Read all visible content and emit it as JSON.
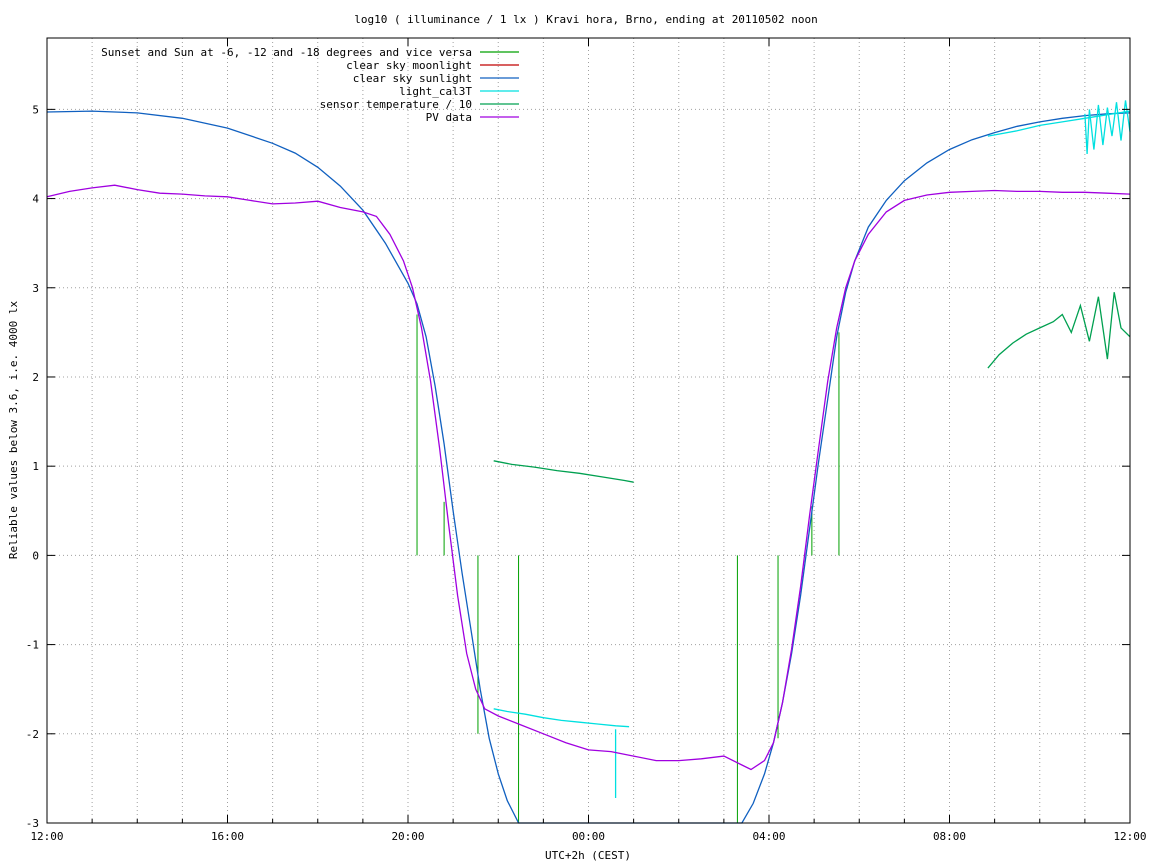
{
  "chart_data": {
    "type": "line",
    "title": "log10 ( illuminance / 1 lx ) Kravi hora, Brno, ending at 20110502 noon",
    "xlabel": "UTC+2h (CEST)",
    "ylabel": "Reliable values below 3.6, i.e. 4000 lx",
    "x_unit": "hours since 12:00 (time of day)",
    "xlim": [
      0,
      24
    ],
    "ylim": [
      -3,
      5.8
    ],
    "x_ticks": [
      {
        "v": 0,
        "label": "12:00"
      },
      {
        "v": 4,
        "label": "16:00"
      },
      {
        "v": 8,
        "label": "20:00"
      },
      {
        "v": 12,
        "label": "00:00"
      },
      {
        "v": 16,
        "label": "04:00"
      },
      {
        "v": 20,
        "label": "08:00"
      },
      {
        "v": 24,
        "label": "12:00"
      }
    ],
    "x_minor_grid": [
      1,
      2,
      3,
      5,
      6,
      7,
      9,
      10,
      11,
      13,
      14,
      15,
      17,
      18,
      19,
      21,
      22,
      23
    ],
    "y_ticks": [
      {
        "v": 5,
        "label": "5"
      },
      {
        "v": 4,
        "label": "4"
      },
      {
        "v": 3,
        "label": "3"
      },
      {
        "v": 2,
        "label": "2"
      },
      {
        "v": 1,
        "label": "1"
      },
      {
        "v": 0,
        "label": "0"
      },
      {
        "v": -1,
        "label": "-1"
      },
      {
        "v": -2,
        "label": "-2"
      },
      {
        "v": -3,
        "label": "-3"
      }
    ],
    "grid": true,
    "legend_position": "top-left",
    "legend": [
      {
        "label": "Sunset and Sun at -6, -12 and -18 degrees and vice versa",
        "color": "#00a000"
      },
      {
        "label": "clear sky moonlight",
        "color": "#c00000"
      },
      {
        "label": "clear sky sunlight",
        "color": "#1060c0"
      },
      {
        "label": "light_cal3T",
        "color": "#00e0e0"
      },
      {
        "label": "sensor temperature / 10",
        "color": "#00a050"
      },
      {
        "label": "PV data",
        "color": "#a000e0"
      }
    ],
    "series": [
      {
        "name": "Sunset and Sun at -6, -12 and -18 degrees and vice versa",
        "type": "impulses",
        "color": "#00a000",
        "impulses": [
          {
            "x": 8.2,
            "y0": 0,
            "y1": 2.7
          },
          {
            "x": 8.8,
            "y0": 0,
            "y1": 0.6
          },
          {
            "x": 9.55,
            "y0": 0,
            "y1": -2.0
          },
          {
            "x": 10.45,
            "y0": 0,
            "y1": -3.0
          },
          {
            "x": 15.3,
            "y0": 0,
            "y1": -3.0
          },
          {
            "x": 16.2,
            "y0": 0,
            "y1": -2.05
          },
          {
            "x": 16.95,
            "y0": 0,
            "y1": 0.55
          },
          {
            "x": 17.55,
            "y0": 0,
            "y1": 2.5
          }
        ]
      },
      {
        "name": "clear sky sunlight",
        "type": "line",
        "color": "#1060c0",
        "points": [
          [
            0,
            4.97
          ],
          [
            1,
            4.98
          ],
          [
            2,
            4.96
          ],
          [
            3,
            4.9
          ],
          [
            4,
            4.79
          ],
          [
            5,
            4.62
          ],
          [
            5.5,
            4.51
          ],
          [
            6,
            4.35
          ],
          [
            6.5,
            4.14
          ],
          [
            7,
            3.87
          ],
          [
            7.5,
            3.5
          ],
          [
            8,
            3.05
          ],
          [
            8.2,
            2.82
          ],
          [
            8.4,
            2.45
          ],
          [
            8.6,
            1.9
          ],
          [
            8.8,
            1.25
          ],
          [
            9.0,
            0.5
          ],
          [
            9.2,
            -0.2
          ],
          [
            9.4,
            -0.85
          ],
          [
            9.6,
            -1.5
          ],
          [
            9.8,
            -2.05
          ],
          [
            10.0,
            -2.45
          ],
          [
            10.2,
            -2.75
          ],
          [
            10.45,
            -3.0
          ],
          [
            15.4,
            -3.0
          ],
          [
            15.65,
            -2.78
          ],
          [
            15.9,
            -2.45
          ],
          [
            16.1,
            -2.1
          ],
          [
            16.3,
            -1.65
          ],
          [
            16.5,
            -1.1
          ],
          [
            16.7,
            -0.45
          ],
          [
            16.9,
            0.3
          ],
          [
            17.1,
            1.05
          ],
          [
            17.3,
            1.75
          ],
          [
            17.5,
            2.45
          ],
          [
            17.7,
            2.95
          ],
          [
            17.9,
            3.3
          ],
          [
            18.2,
            3.68
          ],
          [
            18.6,
            3.98
          ],
          [
            19,
            4.2
          ],
          [
            19.5,
            4.4
          ],
          [
            20,
            4.55
          ],
          [
            20.5,
            4.66
          ],
          [
            21,
            4.74
          ],
          [
            21.5,
            4.81
          ],
          [
            22,
            4.86
          ],
          [
            22.5,
            4.9
          ],
          [
            23,
            4.93
          ],
          [
            23.5,
            4.95
          ],
          [
            24,
            4.96
          ]
        ]
      },
      {
        "name": "light_cal3T",
        "type": "line",
        "color": "#00e0e0",
        "segments": [
          [
            [
              9.9,
              -1.72
            ],
            [
              10.2,
              -1.75
            ],
            [
              10.6,
              -1.78
            ],
            [
              11.0,
              -1.82
            ],
            [
              11.4,
              -1.85
            ],
            [
              11.8,
              -1.87
            ],
            [
              12.2,
              -1.89
            ],
            [
              12.6,
              -1.91
            ],
            [
              12.9,
              -1.92
            ]
          ],
          [
            [
              12.6,
              -1.95
            ],
            [
              12.6,
              -2.72
            ]
          ],
          [
            [
              20.85,
              4.7
            ],
            [
              21.5,
              4.76
            ],
            [
              22.0,
              4.82
            ],
            [
              22.5,
              4.86
            ],
            [
              23.0,
              4.9
            ],
            [
              23.5,
              4.94
            ],
            [
              24,
              4.98
            ]
          ],
          [
            [
              23.0,
              4.95
            ],
            [
              23.05,
              4.5
            ],
            [
              23.1,
              5.0
            ],
            [
              23.2,
              4.55
            ],
            [
              23.3,
              5.05
            ],
            [
              23.4,
              4.6
            ],
            [
              23.5,
              5.02
            ],
            [
              23.6,
              4.7
            ],
            [
              23.7,
              5.08
            ],
            [
              23.8,
              4.65
            ],
            [
              23.9,
              5.1
            ],
            [
              24,
              4.75
            ]
          ]
        ]
      },
      {
        "name": "sensor temperature / 10",
        "type": "line",
        "color": "#00a050",
        "segments": [
          [
            [
              9.9,
              1.06
            ],
            [
              10.3,
              1.02
            ],
            [
              10.8,
              0.99
            ],
            [
              11.3,
              0.95
            ],
            [
              11.8,
              0.92
            ],
            [
              12.3,
              0.88
            ],
            [
              12.8,
              0.84
            ],
            [
              13.0,
              0.82
            ]
          ],
          [
            [
              20.85,
              2.1
            ],
            [
              21.1,
              2.25
            ],
            [
              21.4,
              2.38
            ],
            [
              21.7,
              2.48
            ],
            [
              22.0,
              2.55
            ],
            [
              22.3,
              2.62
            ],
            [
              22.5,
              2.7
            ],
            [
              22.7,
              2.5
            ],
            [
              22.9,
              2.8
            ],
            [
              23.1,
              2.4
            ],
            [
              23.3,
              2.9
            ],
            [
              23.5,
              2.2
            ],
            [
              23.65,
              2.95
            ],
            [
              23.8,
              2.55
            ],
            [
              24,
              2.45
            ]
          ]
        ]
      },
      {
        "name": "PV data",
        "type": "line",
        "color": "#a000e0",
        "points": [
          [
            0,
            4.02
          ],
          [
            0.5,
            4.08
          ],
          [
            1,
            4.12
          ],
          [
            1.5,
            4.15
          ],
          [
            2,
            4.1
          ],
          [
            2.5,
            4.06
          ],
          [
            3,
            4.05
          ],
          [
            3.5,
            4.03
          ],
          [
            4,
            4.02
          ],
          [
            4.5,
            3.98
          ],
          [
            5,
            3.94
          ],
          [
            5.5,
            3.95
          ],
          [
            6,
            3.97
          ],
          [
            6.5,
            3.9
          ],
          [
            7,
            3.85
          ],
          [
            7.3,
            3.8
          ],
          [
            7.6,
            3.6
          ],
          [
            7.9,
            3.3
          ],
          [
            8.1,
            3.0
          ],
          [
            8.3,
            2.55
          ],
          [
            8.5,
            1.95
          ],
          [
            8.7,
            1.2
          ],
          [
            8.9,
            0.35
          ],
          [
            9.1,
            -0.45
          ],
          [
            9.3,
            -1.1
          ],
          [
            9.5,
            -1.5
          ],
          [
            9.7,
            -1.72
          ],
          [
            10.0,
            -1.8
          ],
          [
            10.5,
            -1.9
          ],
          [
            11.0,
            -2.0
          ],
          [
            11.5,
            -2.1
          ],
          [
            12.0,
            -2.18
          ],
          [
            12.5,
            -2.2
          ],
          [
            13.0,
            -2.25
          ],
          [
            13.5,
            -2.3
          ],
          [
            14.0,
            -2.3
          ],
          [
            14.5,
            -2.28
          ],
          [
            15.0,
            -2.25
          ],
          [
            15.4,
            -2.35
          ],
          [
            15.6,
            -2.4
          ],
          [
            15.9,
            -2.3
          ],
          [
            16.1,
            -2.1
          ],
          [
            16.3,
            -1.65
          ],
          [
            16.5,
            -1.05
          ],
          [
            16.7,
            -0.35
          ],
          [
            16.9,
            0.45
          ],
          [
            17.1,
            1.2
          ],
          [
            17.3,
            1.95
          ],
          [
            17.5,
            2.55
          ],
          [
            17.7,
            3.0
          ],
          [
            17.9,
            3.3
          ],
          [
            18.2,
            3.6
          ],
          [
            18.6,
            3.85
          ],
          [
            19,
            3.98
          ],
          [
            19.5,
            4.04
          ],
          [
            20,
            4.07
          ],
          [
            20.5,
            4.08
          ],
          [
            21,
            4.09
          ],
          [
            21.5,
            4.08
          ],
          [
            22,
            4.08
          ],
          [
            22.5,
            4.07
          ],
          [
            23,
            4.07
          ],
          [
            23.5,
            4.06
          ],
          [
            24,
            4.05
          ]
        ]
      }
    ]
  }
}
